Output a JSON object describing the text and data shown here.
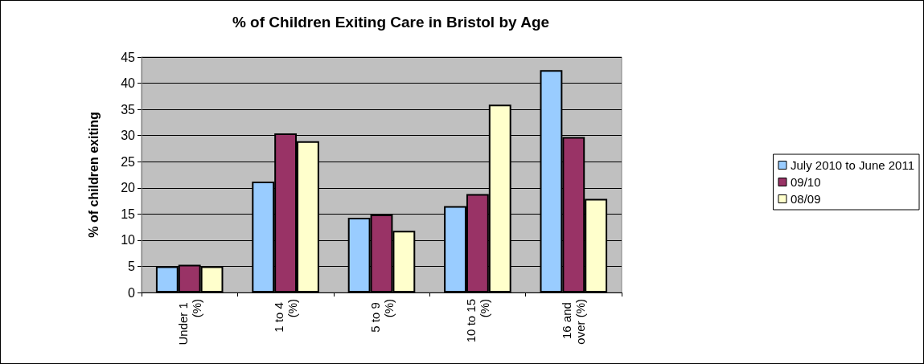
{
  "chart_data": {
    "type": "bar",
    "title": "% of Children Exiting Care in Bristol by Age",
    "ylabel": "% of children exiting",
    "categories": [
      "Under 1 (%)",
      "1 to 4 (%)",
      "5 to 9 (%)",
      "10 to 15 (%)",
      "16 and over (%)"
    ],
    "series": [
      {
        "name": "July 2010 to June 2011",
        "color": "#99ccff",
        "values": [
          5.0,
          21.2,
          14.3,
          16.5,
          42.5
        ]
      },
      {
        "name": "09/10",
        "color": "#993366",
        "values": [
          5.3,
          30.4,
          14.9,
          18.8,
          29.7
        ]
      },
      {
        "name": "08/09",
        "color": "#ffffcc",
        "values": [
          5.0,
          28.9,
          11.8,
          35.9,
          17.9
        ]
      }
    ],
    "ylim": [
      0,
      45
    ],
    "yticks": [
      0,
      5,
      10,
      15,
      20,
      25,
      30,
      35,
      40,
      45
    ],
    "grid": "y",
    "legend": "right"
  }
}
